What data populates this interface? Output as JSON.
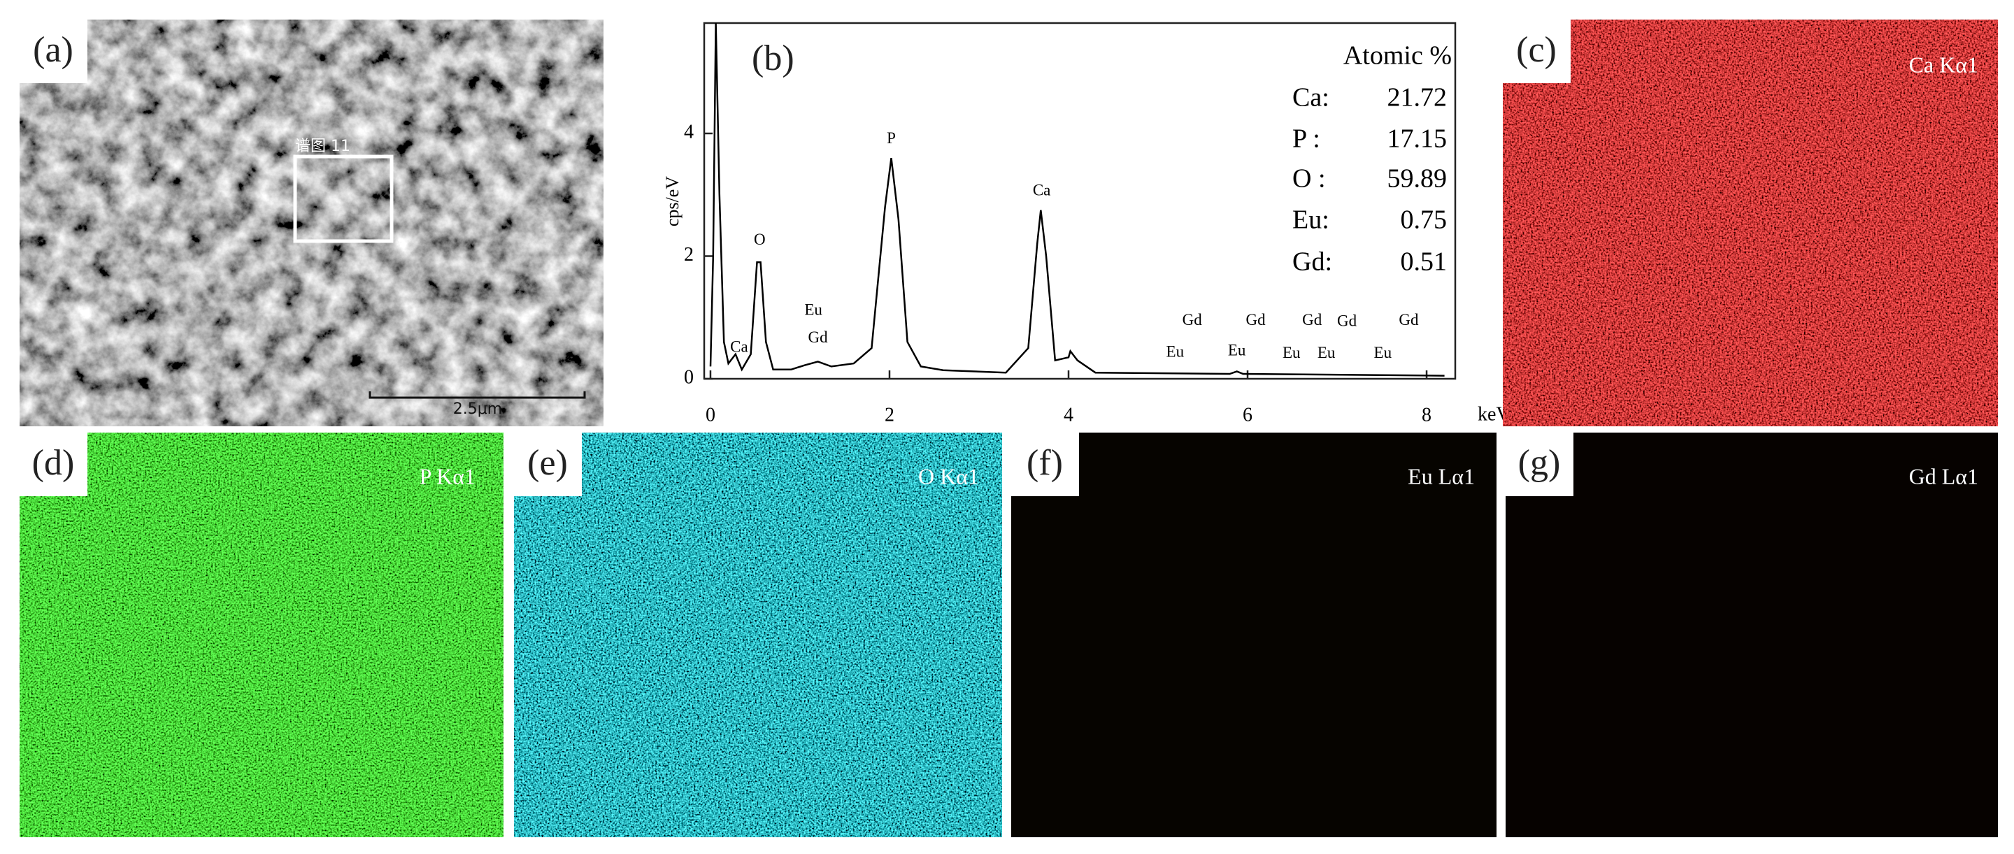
{
  "panels": {
    "a": {
      "label": "(a)",
      "box_label": "谱图 11",
      "scale_bar": "2.5μm"
    },
    "b": {
      "label": "(b)"
    },
    "c": {
      "label": "(c)",
      "title": "Ca Kα1"
    },
    "d": {
      "label": "(d)",
      "title": "P Kα1"
    },
    "e": {
      "label": "(e)",
      "title": "O Kα1"
    },
    "f": {
      "label": "(f)",
      "title": "Eu Lα1"
    },
    "g": {
      "label": "(g)",
      "title": "Gd Lα1"
    }
  },
  "atomic_table": {
    "title": "Atomic %",
    "rows": [
      [
        "Ca:",
        21.72
      ],
      [
        "P :",
        17.15
      ],
      [
        "O :",
        59.89
      ],
      [
        "Eu:",
        0.75
      ],
      [
        "Gd:",
        0.51
      ]
    ]
  },
  "chart_data": {
    "type": "line",
    "color": "#000000",
    "ylabel": "cps/eV",
    "xlabel": "keV",
    "x": [
      0,
      0.03,
      0.06,
      0.1,
      0.15,
      0.2,
      0.28,
      0.35,
      0.45,
      0.52,
      0.56,
      0.62,
      0.7,
      0.9,
      1.05,
      1.2,
      1.35,
      1.6,
      1.8,
      1.95,
      2.02,
      2.1,
      2.2,
      2.35,
      2.6,
      3.3,
      3.55,
      3.65,
      3.69,
      3.75,
      3.85,
      4.0,
      4.02,
      4.1,
      4.3,
      5.8,
      5.88,
      5.95,
      8.2
    ],
    "values": [
      0.2,
      2,
      5.8,
      3,
      0.6,
      0.25,
      0.4,
      0.15,
      0.4,
      1.9,
      1.9,
      0.6,
      0.15,
      0.15,
      0.22,
      0.28,
      0.2,
      0.25,
      0.5,
      2.8,
      3.6,
      2.6,
      0.6,
      0.2,
      0.14,
      0.1,
      0.5,
      2.2,
      2.75,
      2,
      0.3,
      0.35,
      0.45,
      0.3,
      0.1,
      0.08,
      0.12,
      0.08,
      0.05
    ],
    "xlim": [
      -0.07,
      8.32
    ],
    "ylim": [
      0,
      5.8
    ],
    "xticks": [
      0,
      2,
      4,
      6,
      8
    ],
    "yticks": [
      0,
      2,
      4
    ],
    "annotations": [
      "Ca",
      "O",
      "Eu",
      "Gd",
      "P",
      "Ca",
      "Gd",
      "Eu",
      "Gd",
      "Eu",
      "Gd",
      "Eu",
      "Gd",
      "Eu",
      "Gd",
      "Eu"
    ]
  }
}
